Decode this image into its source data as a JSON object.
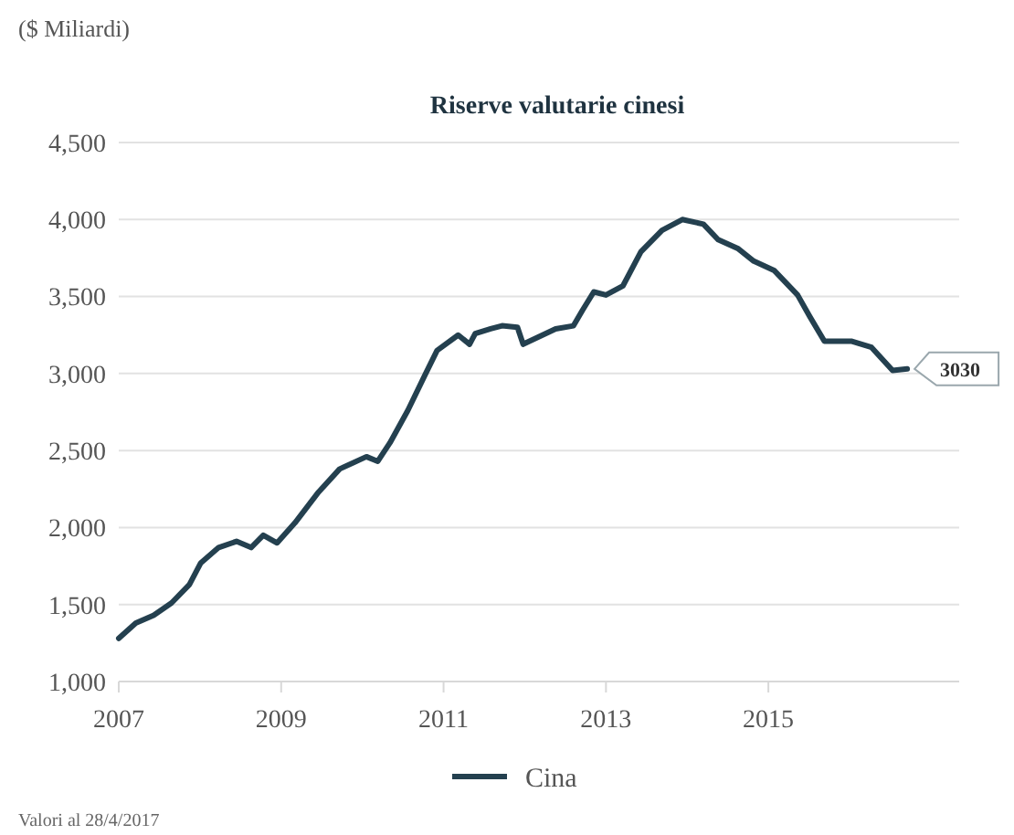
{
  "chart_data": {
    "type": "line",
    "title": "Riserve valutarie cinesi",
    "ylabel": "($ Miliardi)",
    "annotations": [
      "Valori al 28/4/2017",
      {
        "text": "3030",
        "x": 2016.71,
        "y": 3030
      }
    ],
    "x": [
      2007,
      2007.21,
      2007.43,
      2007.65,
      2007.87,
      2008.01,
      2008.23,
      2008.45,
      2008.63,
      2008.78,
      2008.95,
      2009.17,
      2009.46,
      2009.72,
      2010.05,
      2010.19,
      2010.34,
      2010.56,
      2010.78,
      2010.92,
      2011.18,
      2011.32,
      2011.39,
      2011.58,
      2011.72,
      2011.91,
      2011.98,
      2012.38,
      2012.6,
      2012.71,
      2012.85,
      2013,
      2013.21,
      2013.43,
      2013.69,
      2013.94,
      2014.2,
      2014.38,
      2014.63,
      2014.82,
      2015.07,
      2015.36,
      2015.51,
      2015.69,
      2016.02,
      2016.27,
      2016.53,
      2016.71
    ],
    "series": [
      {
        "name": "Cina",
        "color": "#24404f",
        "values": [
          1280,
          1380,
          1430,
          1510,
          1630,
          1770,
          1870,
          1910,
          1870,
          1950,
          1900,
          2030,
          2230,
          2380,
          2460,
          2430,
          2550,
          2760,
          3000,
          3150,
          3250,
          3190,
          3260,
          3290,
          3310,
          3300,
          3190,
          3290,
          3310,
          3410,
          3530,
          3510,
          3570,
          3790,
          3930,
          4000,
          3970,
          3870,
          3810,
          3730,
          3670,
          3510,
          3370,
          3210,
          3210,
          3170,
          3020,
          3030
        ]
      }
    ],
    "xlim": [
      2007,
      2017.35
    ],
    "xticks": [
      2007,
      2009,
      2011,
      2013,
      2015
    ],
    "ylim": [
      1000,
      4500
    ],
    "yticks": [
      {
        "value": 1000,
        "label": "1,000"
      },
      {
        "value": 1500,
        "label": "1,500"
      },
      {
        "value": 2000,
        "label": "2,000"
      },
      {
        "value": 2500,
        "label": "2,500"
      },
      {
        "value": 3000,
        "label": "3,000"
      },
      {
        "value": 3500,
        "label": "3,500"
      },
      {
        "value": 4000,
        "label": "4,000"
      },
      {
        "value": 4500,
        "label": "4,500"
      }
    ],
    "grid": "y",
    "legend": "bottom",
    "line_style": "solid",
    "marker": "none"
  }
}
